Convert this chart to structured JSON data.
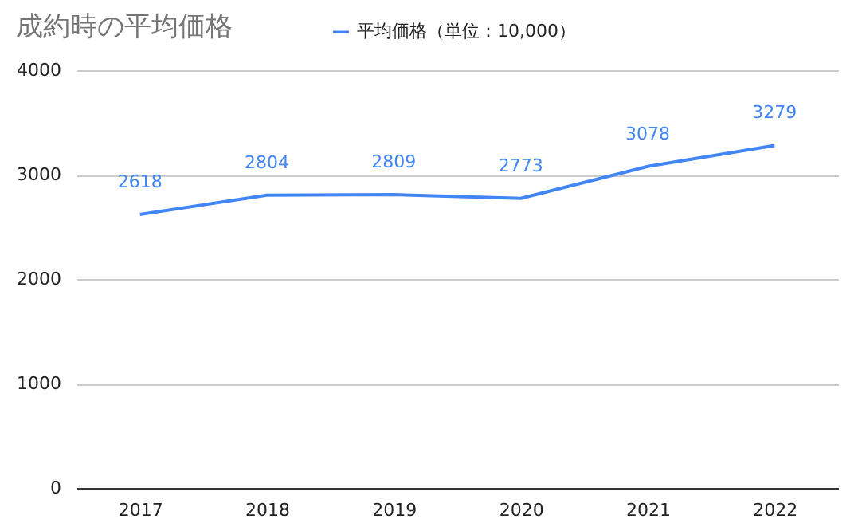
{
  "chart_data": {
    "type": "line",
    "title": "成約時の平均価格",
    "categories": [
      "2017",
      "2018",
      "2019",
      "2020",
      "2021",
      "2022"
    ],
    "series": [
      {
        "name": "平均価格（単位：10,000）",
        "color": "#4285f4",
        "values": [
          2618,
          2804,
          2809,
          2773,
          3078,
          3279
        ]
      }
    ],
    "ylim": [
      0,
      4000
    ],
    "yticks": [
      0,
      1000,
      2000,
      3000,
      4000
    ],
    "grid": "y",
    "legend": "top",
    "data_labels": true,
    "marker": "none",
    "line_style": "solid"
  }
}
